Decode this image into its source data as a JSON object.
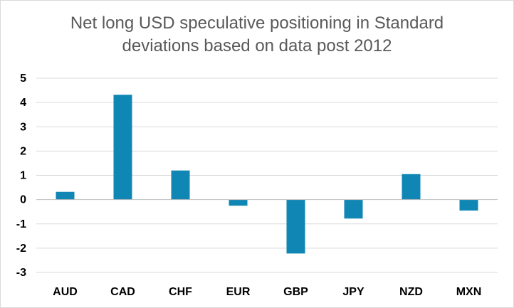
{
  "chart_data": {
    "type": "bar",
    "title_lines": [
      "Net long USD speculative positioning in Standard",
      "deviations based on data post 2012"
    ],
    "categories": [
      "AUD",
      "CAD",
      "CHF",
      "EUR",
      "GBP",
      "JPY",
      "NZD",
      "MXN"
    ],
    "values": [
      0.32,
      4.32,
      1.2,
      -0.25,
      -2.22,
      -0.78,
      1.05,
      -0.45
    ],
    "ylim": [
      -3,
      5
    ],
    "yticks": [
      5,
      4,
      3,
      2,
      1,
      0,
      -1,
      -2,
      -3
    ],
    "xlabel": "",
    "ylabel": "",
    "grid": true,
    "legend": "none",
    "bar_color": "#0F86B4",
    "grid_color": "#d9d9d9",
    "axis_color": "#bfbfbf"
  }
}
